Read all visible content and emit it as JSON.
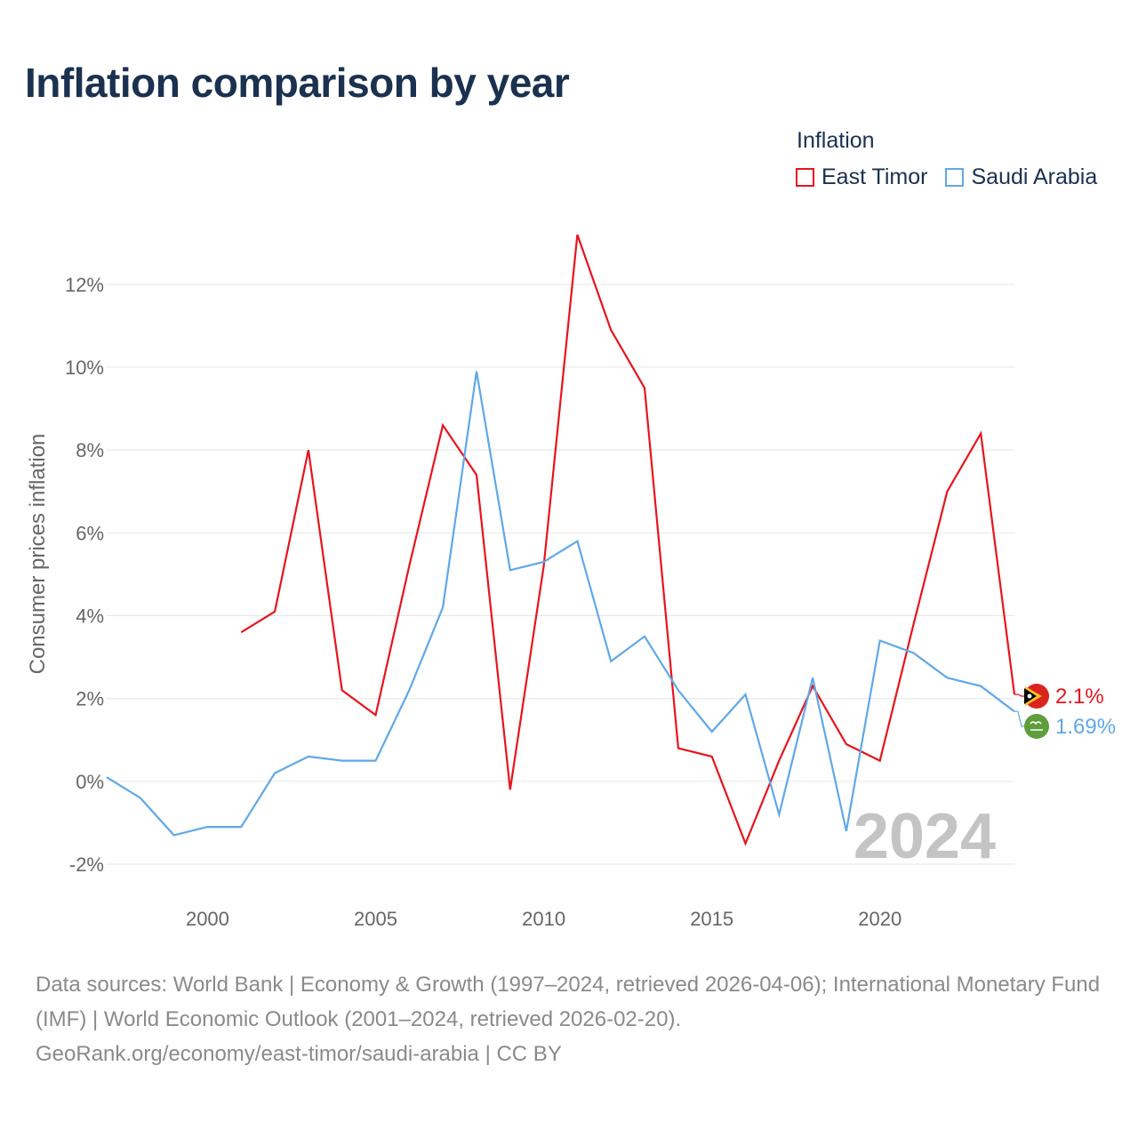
{
  "title": "Inflation comparison by year",
  "legend": {
    "title": "Inflation",
    "items": [
      {
        "label": "East Timor",
        "color": "#e8141c"
      },
      {
        "label": "Saudi Arabia",
        "color": "#5fa8e8"
      }
    ]
  },
  "watermark_year": "2024",
  "footer": {
    "sources": "Data sources: World Bank | Economy & Growth (1997–2024, retrieved 2026-04-06); International Monetary Fund (IMF) | World Economic Outlook (2001–2024, retrieved 2026-02-20).",
    "credit": "GeoRank.org/economy/east-timor/saudi-arabia | CC BY"
  },
  "chart_data": {
    "type": "line",
    "ylabel": "Consumer prices inflation",
    "xlabel": "",
    "xlim": [
      1997,
      2024
    ],
    "ylim": [
      -2.6,
      13.5
    ],
    "x_ticks": [
      2000,
      2005,
      2010,
      2015,
      2020
    ],
    "y_ticks": [
      {
        "value": -2,
        "label": "-2%"
      },
      {
        "value": 0,
        "label": "0%"
      },
      {
        "value": 2,
        "label": "2%"
      },
      {
        "value": 4,
        "label": "4%"
      },
      {
        "value": 6,
        "label": "6%"
      },
      {
        "value": 8,
        "label": "8%"
      },
      {
        "value": 10,
        "label": "10%"
      },
      {
        "value": 12,
        "label": "12%"
      }
    ],
    "series": [
      {
        "name": "East Timor",
        "color": "#e8141c",
        "end_label": "2.1%",
        "icon": "east-timor-flag-icon",
        "x": [
          2001,
          2002,
          2003,
          2004,
          2005,
          2006,
          2007,
          2008,
          2009,
          2010,
          2011,
          2012,
          2013,
          2014,
          2015,
          2016,
          2017,
          2018,
          2019,
          2020,
          2021,
          2022,
          2023,
          2024
        ],
        "values": [
          3.6,
          4.1,
          8.0,
          2.2,
          1.6,
          5.2,
          8.6,
          7.4,
          -0.2,
          5.2,
          13.2,
          10.9,
          9.5,
          0.8,
          0.6,
          -1.5,
          0.5,
          2.3,
          0.9,
          0.5,
          3.8,
          7.0,
          8.4,
          2.1
        ]
      },
      {
        "name": "Saudi Arabia",
        "color": "#5fa8e8",
        "end_label": "1.69%",
        "icon": "saudi-arabia-flag-icon",
        "x": [
          1997,
          1998,
          1999,
          2000,
          2001,
          2002,
          2003,
          2004,
          2005,
          2006,
          2007,
          2008,
          2009,
          2010,
          2011,
          2012,
          2013,
          2014,
          2015,
          2016,
          2017,
          2018,
          2019,
          2020,
          2021,
          2022,
          2023,
          2024
        ],
        "values": [
          0.1,
          -0.4,
          -1.3,
          -1.1,
          -1.1,
          0.2,
          0.6,
          0.5,
          0.5,
          2.2,
          4.2,
          9.9,
          5.1,
          5.3,
          5.8,
          2.9,
          3.5,
          2.2,
          1.2,
          2.1,
          -0.8,
          2.5,
          -1.2,
          3.4,
          3.1,
          2.5,
          2.3,
          1.69
        ]
      }
    ]
  }
}
